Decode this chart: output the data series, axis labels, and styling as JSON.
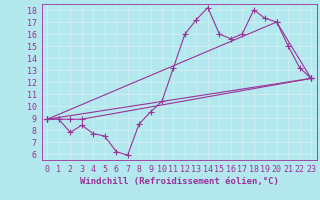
{
  "bg_color": "#b3e8ee",
  "line_color": "#993399",
  "marker": "+",
  "markersize": 4,
  "linewidth": 0.8,
  "xlabel": "Windchill (Refroidissement éolien,°C)",
  "xlabel_fontsize": 6.5,
  "tick_fontsize": 6,
  "xlim": [
    -0.5,
    23.5
  ],
  "ylim": [
    5.5,
    18.5
  ],
  "xticks": [
    0,
    1,
    2,
    3,
    4,
    5,
    6,
    7,
    8,
    9,
    10,
    11,
    12,
    13,
    14,
    15,
    16,
    17,
    18,
    19,
    20,
    21,
    22,
    23
  ],
  "yticks": [
    6,
    7,
    8,
    9,
    10,
    11,
    12,
    13,
    14,
    15,
    16,
    17,
    18
  ],
  "grid_color": "#d0eef2",
  "series": [
    {
      "x": [
        0,
        1,
        2,
        3,
        4,
        5,
        6,
        7,
        8,
        9,
        10,
        11,
        12,
        13,
        14,
        15,
        16,
        17,
        18,
        19,
        20,
        21,
        22,
        23
      ],
      "y": [
        8.9,
        8.9,
        7.8,
        8.4,
        7.7,
        7.5,
        6.2,
        5.9,
        8.5,
        9.5,
        10.4,
        13.2,
        16.0,
        17.2,
        18.2,
        16.0,
        15.6,
        16.0,
        18.0,
        17.3,
        17.0,
        15.0,
        13.2,
        12.3
      ]
    },
    {
      "x": [
        0,
        1,
        2,
        3,
        23
      ],
      "y": [
        8.9,
        8.9,
        8.9,
        8.9,
        12.3
      ]
    },
    {
      "x": [
        0,
        23
      ],
      "y": [
        8.9,
        12.3
      ]
    },
    {
      "x": [
        0,
        20,
        23
      ],
      "y": [
        8.9,
        17.0,
        12.3
      ]
    }
  ]
}
